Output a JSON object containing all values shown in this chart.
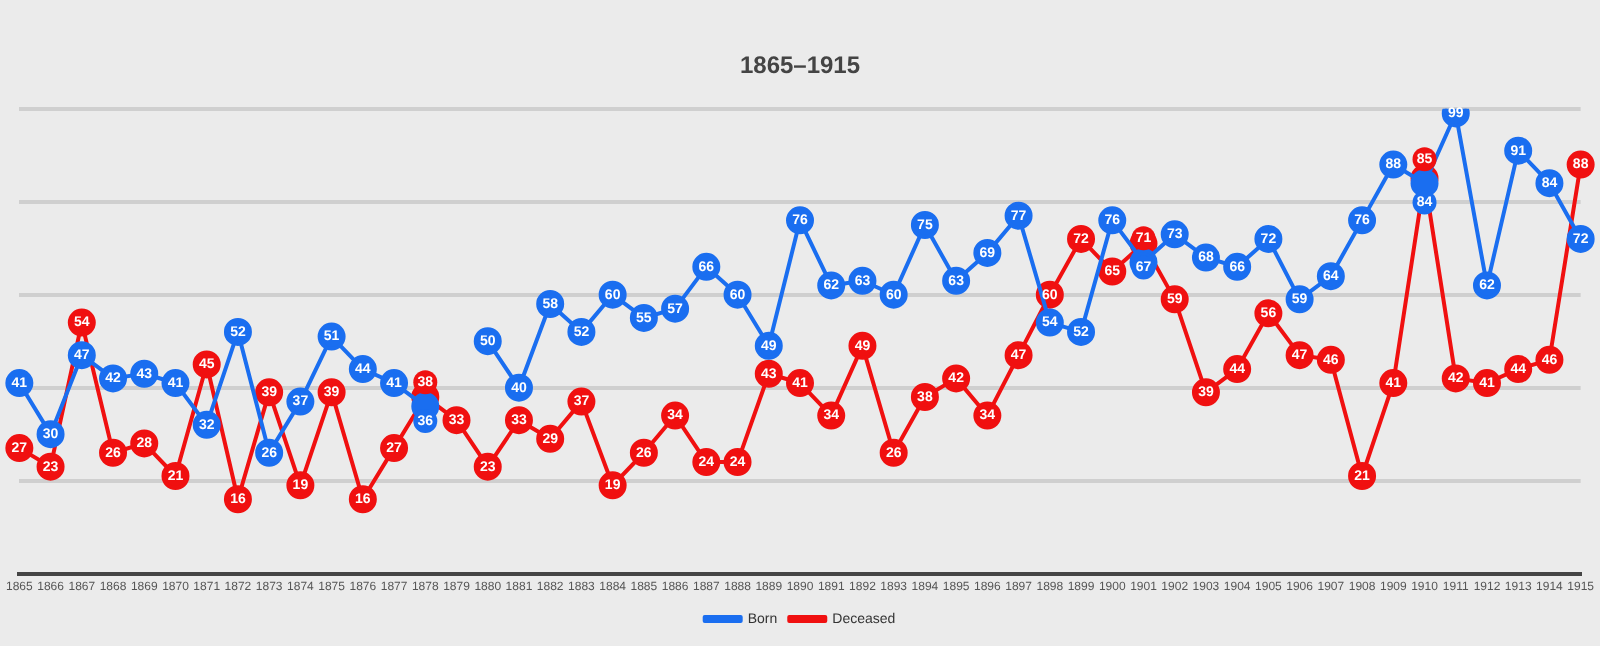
{
  "chart_data": {
    "type": "line",
    "title": "1865–1915",
    "categories": [
      "1865",
      "1866",
      "1867",
      "1868",
      "1869",
      "1870",
      "1871",
      "1872",
      "1873",
      "1874",
      "1875",
      "1876",
      "1877",
      "1878",
      "1879",
      "1880",
      "1881",
      "1882",
      "1883",
      "1884",
      "1885",
      "1886",
      "1887",
      "1888",
      "1889",
      "1890",
      "1891",
      "1892",
      "1893",
      "1894",
      "1895",
      "1896",
      "1897",
      "1898",
      "1899",
      "1900",
      "1901",
      "1902",
      "1903",
      "1904",
      "1905",
      "1906",
      "1907",
      "1908",
      "1909",
      "1910",
      "1911",
      "1912",
      "1913",
      "1914",
      "1915"
    ],
    "series": [
      {
        "name": "Born",
        "color": "#1a6ef0",
        "values": [
          41,
          30,
          47,
          42,
          43,
          41,
          32,
          52,
          26,
          37,
          51,
          44,
          41,
          36,
          null,
          50,
          40,
          58,
          52,
          60,
          55,
          57,
          66,
          60,
          49,
          76,
          62,
          63,
          60,
          75,
          63,
          69,
          77,
          54,
          52,
          76,
          67,
          73,
          68,
          66,
          72,
          59,
          64,
          76,
          88,
          84,
          99,
          62,
          91,
          84,
          72
        ]
      },
      {
        "name": "Deceased",
        "color": "#f01010",
        "values": [
          27,
          23,
          54,
          26,
          28,
          21,
          45,
          16,
          39,
          19,
          39,
          16,
          27,
          38,
          33,
          23,
          33,
          29,
          37,
          19,
          26,
          34,
          24,
          24,
          43,
          41,
          34,
          49,
          26,
          38,
          42,
          34,
          47,
          60,
          72,
          65,
          71,
          59,
          39,
          44,
          56,
          47,
          46,
          21,
          41,
          85,
          42,
          41,
          44,
          46,
          88
        ]
      }
    ],
    "yticks": [
      {
        "value": 0,
        "label": null
      },
      {
        "value": 20,
        "label": null
      },
      {
        "value": 40,
        "label": null
      },
      {
        "value": 60,
        "label": null
      },
      {
        "value": 80,
        "label": null
      },
      {
        "value": 100,
        "label": null
      }
    ],
    "grid": "y",
    "tick_labels": "x",
    "legend": "bottom",
    "marker": "circle",
    "line_style": "solid",
    "data_labels": true
  }
}
